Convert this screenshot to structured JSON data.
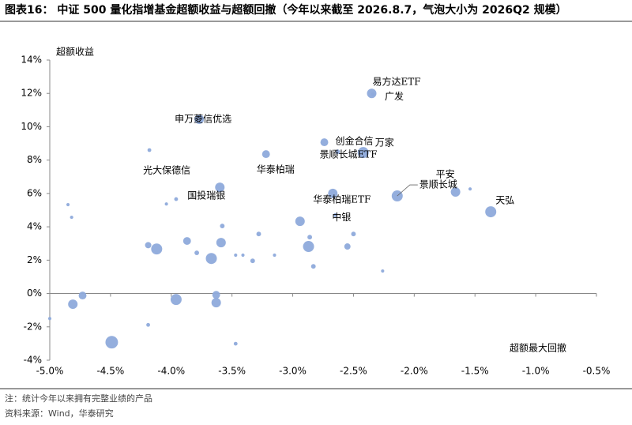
{
  "title": "图表16：  中证 500 量化指增基金超额收益与超额回撤（今年以来截至 2026.8.7，气泡大小为 2026Q2 规模）",
  "notes": [
    "注：统计今年以来拥有完整业绩的产品",
    "资料来源：Wind，华泰研究"
  ],
  "chart_data": {
    "type": "bubble",
    "y_label": "超额收益",
    "x_label": "超额最大回撤",
    "color": "#8eaadb",
    "xlim": [
      -5.0,
      -0.5
    ],
    "ylim": [
      -4,
      14
    ],
    "xticks": [
      {
        "value": -5.0,
        "label": "-5.0%"
      },
      {
        "value": -4.5,
        "label": "-4.5%"
      },
      {
        "value": -4.0,
        "label": "-4.0%"
      },
      {
        "value": -3.5,
        "label": "-3.5%"
      },
      {
        "value": -3.0,
        "label": "-3.0%"
      },
      {
        "value": -2.5,
        "label": "-2.5%"
      },
      {
        "value": -2.0,
        "label": "-2.0%"
      },
      {
        "value": -1.5,
        "label": "-1.5%"
      },
      {
        "value": -1.0,
        "label": "-1.0%"
      },
      {
        "value": -0.5,
        "label": "-0.5%"
      }
    ],
    "yticks": [
      {
        "value": 14,
        "label": "14%"
      },
      {
        "value": 12,
        "label": "12%"
      },
      {
        "value": 10,
        "label": "10%"
      },
      {
        "value": 8,
        "label": "8%"
      },
      {
        "value": 6,
        "label": "6%"
      },
      {
        "value": 4,
        "label": "4%"
      },
      {
        "value": 2,
        "label": "2%"
      },
      {
        "value": 0,
        "label": "0%"
      },
      {
        "value": -2,
        "label": "-2%"
      },
      {
        "value": -4,
        "label": "-4%"
      }
    ],
    "labels": [
      "易方达ETF",
      "广发",
      "申万菱信优选",
      "创金合信",
      "万家",
      "景顺长城ETF",
      "华泰柏瑞",
      "光大保德信",
      "国投瑞银",
      "平安",
      "景顺长城",
      "华泰柏瑞ETF",
      "天弘",
      "中银",
      null,
      null,
      null,
      null,
      null,
      null,
      null,
      null,
      null,
      null,
      null,
      null,
      null,
      null,
      null,
      null,
      null,
      null,
      null,
      null,
      null,
      null,
      null,
      null,
      null,
      null,
      null,
      null,
      null,
      null,
      null,
      null,
      null
    ],
    "x": [
      -2.35,
      -2.34,
      -3.77,
      -2.74,
      -2.42,
      -2.63,
      -3.22,
      -4.18,
      -3.6,
      -1.66,
      -2.14,
      -2.67,
      -1.37,
      -2.65,
      -1.54,
      -4.85,
      -4.82,
      -4.04,
      -3.96,
      -2.94,
      -3.58,
      -2.5,
      -3.28,
      -3.87,
      -2.86,
      -4.19,
      -3.59,
      -4.12,
      -3.79,
      -2.87,
      -2.55,
      -3.67,
      -3.47,
      -3.41,
      -3.15,
      -3.33,
      -2.83,
      -2.26,
      -4.73,
      -4.81,
      -3.96,
      -3.63,
      -3.63,
      -4.19,
      -4.49,
      -3.47,
      -5.0
    ],
    "values": [
      12.0,
      11.95,
      10.45,
      9.07,
      8.45,
      8.5,
      8.36,
      8.6,
      6.37,
      6.09,
      5.85,
      6.0,
      4.9,
      4.7,
      6.27,
      5.33,
      4.57,
      5.37,
      5.66,
      4.33,
      4.05,
      3.57,
      3.57,
      3.15,
      3.38,
      2.9,
      3.05,
      2.67,
      2.44,
      2.82,
      2.82,
      2.1,
      2.3,
      2.3,
      2.3,
      1.96,
      1.63,
      1.35,
      -0.12,
      -0.64,
      -0.36,
      -0.08,
      -0.55,
      -1.88,
      -2.92,
      -3.01,
      -1.5
    ],
    "sizes": [
      25,
      4,
      25,
      17,
      34,
      6,
      17,
      4,
      25,
      25,
      34,
      25,
      34,
      4,
      3,
      3,
      3,
      3,
      4,
      25,
      6,
      6,
      6,
      17,
      6,
      11,
      25,
      34,
      6,
      34,
      11,
      34,
      3,
      3,
      3,
      6,
      6,
      3,
      17,
      25,
      34,
      17,
      25,
      4,
      44,
      4,
      3
    ]
  }
}
